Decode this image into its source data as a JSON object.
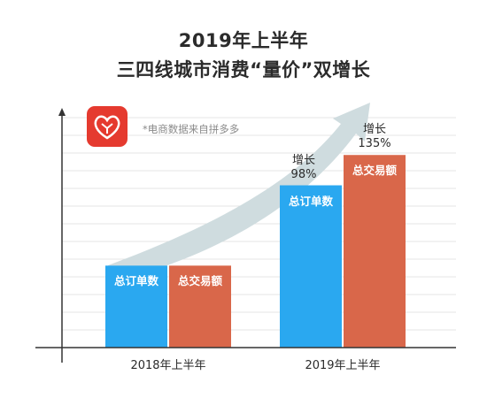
{
  "title_line1": "2019年上半年",
  "title_line2": "三四线城市消费“量价”双增长",
  "source_note": "*电商数据来自拼多多",
  "colors": {
    "orders": "#2aa8f0",
    "gmv": "#d9674a",
    "arrow": "#cfdcdf",
    "logo": "#e53a2f"
  },
  "icons": {
    "logo": "pinduoduo-logo-icon"
  },
  "chart_data": {
    "type": "bar",
    "categories": [
      "2018年上半年",
      "2019年上半年"
    ],
    "series": [
      {
        "name": "总订单数",
        "values": [
          1.0,
          1.98
        ]
      },
      {
        "name": "总交易额",
        "values": [
          1.0,
          2.35
        ]
      }
    ],
    "growth_labels": [
      {
        "label": "增长",
        "value": "98%"
      },
      {
        "label": "增长",
        "value": "135%"
      }
    ],
    "xlabel": "",
    "ylabel": "",
    "ylim": [
      0,
      3.0
    ],
    "grid": true,
    "legend": "none"
  }
}
